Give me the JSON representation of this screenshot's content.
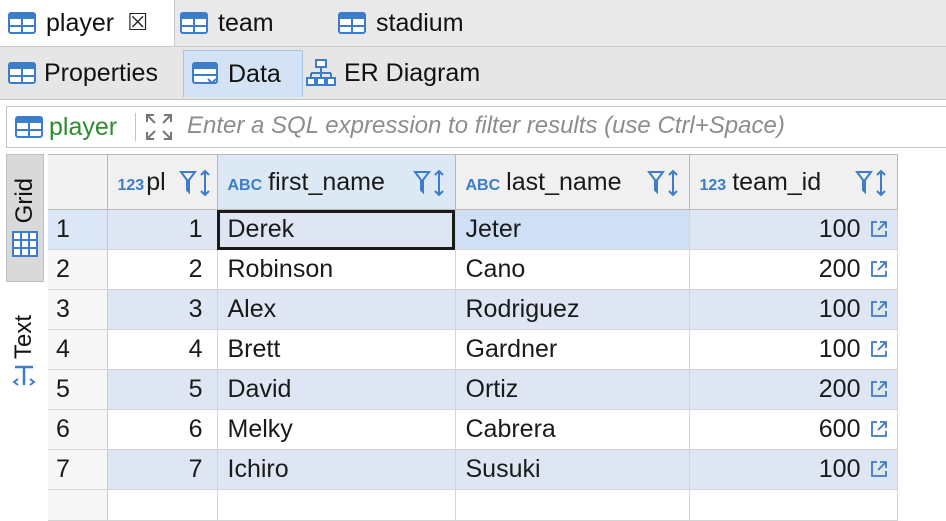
{
  "editor_tabs": [
    {
      "label": "player",
      "active": true
    },
    {
      "label": "team",
      "active": false
    },
    {
      "label": "stadium",
      "active": false
    }
  ],
  "sub_tabs": [
    {
      "label": "Properties",
      "active": false
    },
    {
      "label": "Data",
      "active": true
    },
    {
      "label": "ER Diagram",
      "active": false
    }
  ],
  "filter": {
    "label": "player",
    "placeholder": "Enter a SQL expression to filter results (use Ctrl+Space)"
  },
  "side_tabs": {
    "grid": "Grid",
    "text": "Text"
  },
  "grid": {
    "columns": [
      {
        "name": "pl",
        "type": "123"
      },
      {
        "name": "first_name",
        "type": "ABC"
      },
      {
        "name": "last_name",
        "type": "ABC"
      },
      {
        "name": "team_id",
        "type": "123"
      }
    ],
    "rows": [
      {
        "num": "1",
        "id": "1",
        "first_name": "Derek",
        "last_name": "Jeter",
        "team_id": "100"
      },
      {
        "num": "2",
        "id": "2",
        "first_name": "Robinson",
        "last_name": "Cano",
        "team_id": "200"
      },
      {
        "num": "3",
        "id": "3",
        "first_name": "Alex",
        "last_name": "Rodriguez",
        "team_id": "100"
      },
      {
        "num": "4",
        "id": "4",
        "first_name": "Brett",
        "last_name": "Gardner",
        "team_id": "100"
      },
      {
        "num": "5",
        "id": "5",
        "first_name": "David",
        "last_name": "Ortiz",
        "team_id": "200"
      },
      {
        "num": "6",
        "id": "6",
        "first_name": "Melky",
        "last_name": "Cabrera",
        "team_id": "600"
      },
      {
        "num": "7",
        "id": "7",
        "first_name": "Ichiro",
        "last_name": "Susuki",
        "team_id": "100"
      }
    ]
  },
  "colors": {
    "accent": "#3d7cc9",
    "filter_label": "#2e8b2e",
    "row_stripe": "#dde6f2"
  }
}
